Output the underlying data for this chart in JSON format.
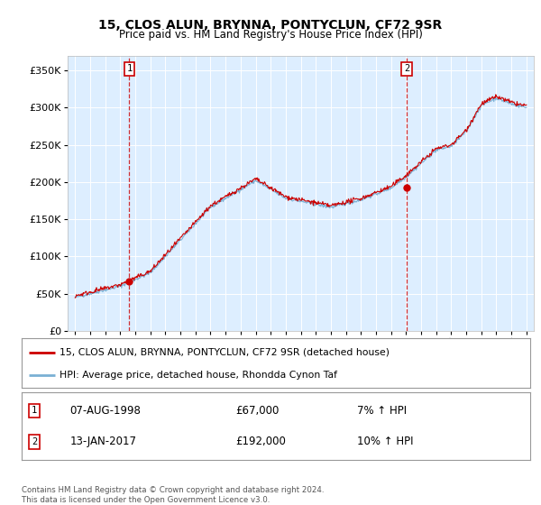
{
  "title": "15, CLOS ALUN, BRYNNA, PONTYCLUN, CF72 9SR",
  "subtitle": "Price paid vs. HM Land Registry's House Price Index (HPI)",
  "ylim": [
    0,
    370000
  ],
  "yticks": [
    0,
    50000,
    100000,
    150000,
    200000,
    250000,
    300000,
    350000
  ],
  "xlim_start": 1994.5,
  "xlim_end": 2025.5,
  "sale1_date": 1998.6,
  "sale1_price": 67000,
  "sale2_date": 2017.04,
  "sale2_price": 192000,
  "red_line_color": "#cc0000",
  "blue_line_color": "#7ab0d4",
  "plot_bg_color": "#ddeeff",
  "legend_line1": "15, CLOS ALUN, BRYNNA, PONTYCLUN, CF72 9SR (detached house)",
  "legend_line2": "HPI: Average price, detached house, Rhondda Cynon Taf",
  "sale1_date_str": "07-AUG-1998",
  "sale1_price_str": "£67,000",
  "sale1_hpi_str": "7% ↑ HPI",
  "sale2_date_str": "13-JAN-2017",
  "sale2_price_str": "£192,000",
  "sale2_hpi_str": "10% ↑ HPI",
  "footer": "Contains HM Land Registry data © Crown copyright and database right 2024.\nThis data is licensed under the Open Government Licence v3.0."
}
